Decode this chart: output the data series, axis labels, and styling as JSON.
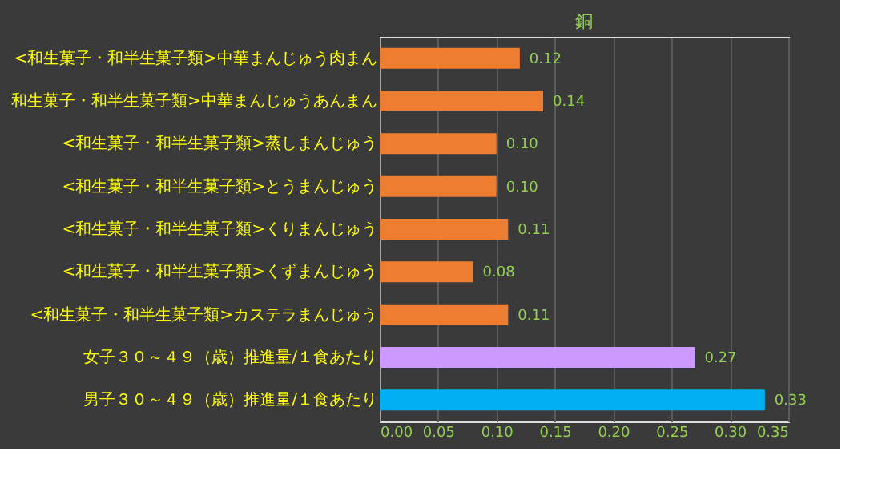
{
  "chart_data": {
    "type": "bar",
    "orientation": "horizontal",
    "title": "銅",
    "categories": [
      "<和生菓子・和半生菓子類>中華まんじゅう肉まん",
      "和生菓子・和半生菓子類>中華まんじゅうあんまん",
      "<和生菓子・和半生菓子類>蒸しまんじゅう",
      "<和生菓子・和半生菓子類>とうまんじゅう",
      "<和生菓子・和半生菓子類>くりまんじゅう",
      "<和生菓子・和半生菓子類>くずまんじゅう",
      "<和生菓子・和半生菓子類>カステラまんじゅう",
      "女子３０～４９（歳）推進量/１食あたり",
      "男子３０～４９（歳）推進量/１食あたり"
    ],
    "values": [
      0.12,
      0.14,
      0.1,
      0.1,
      0.11,
      0.08,
      0.11,
      0.27,
      0.33
    ],
    "value_labels": [
      "0.12",
      "0.14",
      "0.10",
      "0.10",
      "0.11",
      "0.08",
      "0.11",
      "0.27",
      "0.33"
    ],
    "colors": [
      "#ed7d31",
      "#ed7d31",
      "#ed7d31",
      "#ed7d31",
      "#ed7d31",
      "#ed7d31",
      "#ed7d31",
      "#cc99ff",
      "#00b0f0"
    ],
    "xlim": [
      0,
      0.35
    ],
    "xticks": [
      {
        "value": 0,
        "label": "0.00"
      },
      0.05,
      {
        "value": 0.1,
        "label": "0.10"
      },
      0.15,
      {
        "value": 0.2,
        "label": "0.20"
      },
      0.25,
      {
        "value": 0.3,
        "label": "0.30"
      },
      0.35
    ],
    "grid": "x",
    "legend": false
  }
}
